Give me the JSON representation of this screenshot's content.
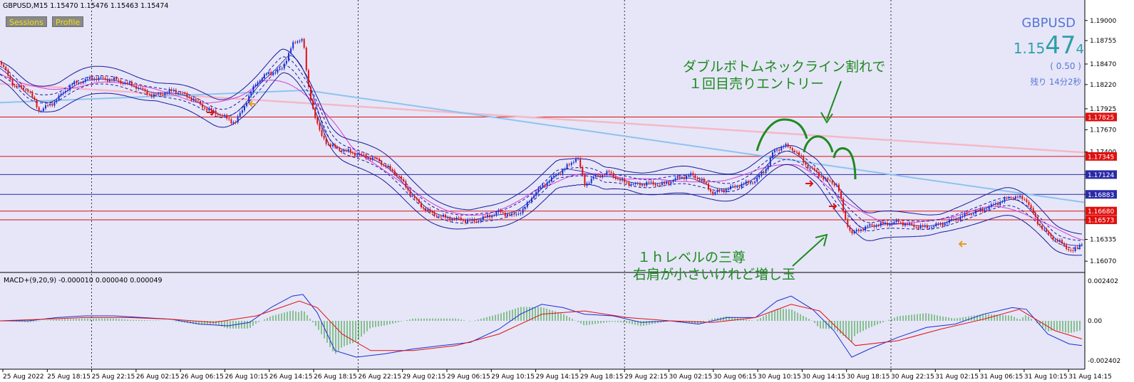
{
  "header": {
    "text": "GBPUSD,M15  1.15470 1.15476 1.15463 1.15474"
  },
  "buttons": [
    {
      "label": "Sessions"
    },
    {
      "label": "Profile"
    }
  ],
  "ticker": {
    "symbol": "GBPUSD",
    "bid_main": "1.15",
    "bid_big": "47",
    "bid_small": "4",
    "change": "( 0.50 )",
    "remaining": "残り 14分2秒"
  },
  "annotations": {
    "top_line1": "ダブルボトムネックライン割れで",
    "top_line2": "１回目売りエントリー",
    "bottom_line1": "１ｈレベルの三尊",
    "bottom_line2": "右肩が小さいけれど増し玉"
  },
  "macd": {
    "label": "MACD+(9,20,9) -0.000010 0.000040 0.000049"
  },
  "colors": {
    "background": "#e6e6f8",
    "bull": "#1a2fd0",
    "bear": "#e01010",
    "band": "#1a1a9c",
    "sma_blue": "#8ec3f0",
    "sma_pink": "#f5b8c8",
    "ma_magenta": "#d63cd6",
    "note": "#1f8a1f",
    "hline_red": "#e01010",
    "hline_blue": "#2a2aa8",
    "axis_tag_red": "#e01010",
    "axis_tag_blue": "#2a2aa8"
  },
  "chart_data": [
    {
      "type": "candlestick",
      "title": "GBPUSD,M15",
      "y_axis_ticks": [
        "1.19000",
        "1.18755",
        "1.18470",
        "1.18220",
        "1.17925",
        "1.17670",
        "1.17400",
        "1.17124",
        "1.16883",
        "1.16573",
        "1.16335",
        "1.16070"
      ],
      "ylim": [
        1.1595,
        1.1918
      ],
      "x_axis_ticks": [
        "25 Aug 2022",
        "25 Aug 18:15",
        "25 Aug 22:15",
        "26 Aug 02:15",
        "26 Aug 06:15",
        "26 Aug 10:15",
        "26 Aug 14:15",
        "26 Aug 18:15",
        "26 Aug 22:15",
        "29 Aug 02:15",
        "29 Aug 06:15",
        "29 Aug 10:15",
        "29 Aug 14:15",
        "29 Aug 18:15",
        "29 Aug 22:15",
        "30 Aug 02:15",
        "30 Aug 06:15",
        "30 Aug 10:15",
        "30 Aug 14:15",
        "30 Aug 18:15",
        "30 Aug 22:15",
        "31 Aug 02:15",
        "31 Aug 06:15",
        "31 Aug 10:15",
        "31 Aug 14:15"
      ],
      "price_close_path": [
        [
          0,
          1.185
        ],
        [
          20,
          1.182
        ],
        [
          40,
          1.1815
        ],
        [
          55,
          1.179
        ],
        [
          75,
          1.18
        ],
        [
          100,
          1.1822
        ],
        [
          130,
          1.183
        ],
        [
          160,
          1.1828
        ],
        [
          190,
          1.182
        ],
        [
          215,
          1.1808
        ],
        [
          245,
          1.1815
        ],
        [
          270,
          1.1805
        ],
        [
          290,
          1.1792
        ],
        [
          310,
          1.1785
        ],
        [
          330,
          1.1775
        ],
        [
          345,
          1.18
        ],
        [
          360,
          1.1825
        ],
        [
          375,
          1.1835
        ],
        [
          395,
          1.184
        ],
        [
          410,
          1.187
        ],
        [
          425,
          1.188
        ],
        [
          432,
          1.182
        ],
        [
          440,
          1.179
        ],
        [
          450,
          1.176
        ],
        [
          460,
          1.175
        ],
        [
          470,
          1.1745
        ],
        [
          490,
          1.174
        ],
        [
          510,
          1.1735
        ],
        [
          530,
          1.173
        ],
        [
          545,
          1.172
        ],
        [
          560,
          1.171
        ],
        [
          575,
          1.169
        ],
        [
          590,
          1.1675
        ],
        [
          605,
          1.1665
        ],
        [
          625,
          1.166
        ],
        [
          645,
          1.1658
        ],
        [
          665,
          1.1655
        ],
        [
          680,
          1.166
        ],
        [
          700,
          1.1667
        ],
        [
          720,
          1.1662
        ],
        [
          735,
          1.167
        ],
        [
          750,
          1.169
        ],
        [
          770,
          1.1705
        ],
        [
          785,
          1.1715
        ],
        [
          800,
          1.1725
        ],
        [
          810,
          1.1735
        ],
        [
          820,
          1.17
        ],
        [
          835,
          1.171
        ],
        [
          855,
          1.1715
        ],
        [
          870,
          1.1705
        ],
        [
          890,
          1.17
        ],
        [
          910,
          1.1702
        ],
        [
          930,
          1.17
        ],
        [
          950,
          1.1708
        ],
        [
          970,
          1.1712
        ],
        [
          985,
          1.1705
        ],
        [
          1000,
          1.169
        ],
        [
          1020,
          1.1695
        ],
        [
          1040,
          1.17
        ],
        [
          1060,
          1.1705
        ],
        [
          1075,
          1.172
        ],
        [
          1085,
          1.174
        ],
        [
          1100,
          1.1748
        ],
        [
          1115,
          1.1742
        ],
        [
          1130,
          1.1725
        ],
        [
          1145,
          1.1715
        ],
        [
          1160,
          1.1705
        ],
        [
          1175,
          1.17
        ],
        [
          1185,
          1.166
        ],
        [
          1195,
          1.164
        ],
        [
          1205,
          1.1645
        ],
        [
          1220,
          1.165
        ],
        [
          1240,
          1.1652
        ],
        [
          1260,
          1.1655
        ],
        [
          1280,
          1.165
        ],
        [
          1300,
          1.1648
        ],
        [
          1320,
          1.1652
        ],
        [
          1340,
          1.1658
        ],
        [
          1360,
          1.1665
        ],
        [
          1380,
          1.167
        ],
        [
          1400,
          1.1678
        ],
        [
          1420,
          1.1686
        ],
        [
          1440,
          1.1682
        ],
        [
          1455,
          1.1655
        ],
        [
          1470,
          1.164
        ],
        [
          1490,
          1.1628
        ],
        [
          1505,
          1.1618
        ],
        [
          1518,
          1.163
        ]
      ],
      "horizontal_lines": [
        {
          "value": 1.17825,
          "label": "1.17825",
          "color": "#e01010"
        },
        {
          "value": 1.17345,
          "label": "1.17345",
          "color": "#e01010"
        },
        {
          "value": 1.17124,
          "label": "1.17124",
          "color": "#2a2aa8"
        },
        {
          "value": 1.16883,
          "label": "1.16883",
          "color": "#2a2aa8"
        },
        {
          "value": 1.1668,
          "label": "1.16680",
          "color": "#e01010"
        },
        {
          "value": 1.16573,
          "label": "1.16573",
          "color": "#e01010"
        }
      ]
    },
    {
      "type": "line",
      "title": "MACD+(9,20,9)",
      "y_axis_ticks": [
        "0.002402",
        "0.00",
        "-0.002402"
      ],
      "ylim": [
        -0.0028,
        0.0028
      ],
      "series": [
        {
          "values": [
            [
              0,
              0.0
            ],
            [
              40,
              0.0
            ],
            [
              80,
              0.0002
            ],
            [
              120,
              0.0003
            ],
            [
              160,
              0.0003
            ],
            [
              200,
              0.0002
            ],
            [
              240,
              0.0001
            ],
            [
              280,
              -0.0002
            ],
            [
              320,
              -0.0003
            ],
            [
              350,
              -0.0001
            ],
            [
              380,
              0.0008
            ],
            [
              410,
              0.0015
            ],
            [
              425,
              0.0016
            ],
            [
              445,
              0.0005
            ],
            [
              470,
              -0.0018
            ],
            [
              500,
              -0.0022
            ],
            [
              540,
              -0.002
            ],
            [
              580,
              -0.0017
            ],
            [
              620,
              -0.0015
            ],
            [
              660,
              -0.0013
            ],
            [
              700,
              -0.0005
            ],
            [
              730,
              0.0004
            ],
            [
              760,
              0.001
            ],
            [
              790,
              0.0008
            ],
            [
              820,
              0.0004
            ],
            [
              860,
              0.0003
            ],
            [
              900,
              -0.0001
            ],
            [
              940,
              0.0
            ],
            [
              980,
              -0.0002
            ],
            [
              1020,
              0.0002
            ],
            [
              1060,
              0.0002
            ],
            [
              1090,
              0.0012
            ],
            [
              1110,
              0.0015
            ],
            [
              1140,
              0.0007
            ],
            [
              1170,
              -0.0006
            ],
            [
              1195,
              -0.0022
            ],
            [
              1220,
              -0.0017
            ],
            [
              1260,
              -0.001
            ],
            [
              1300,
              -0.0004
            ],
            [
              1340,
              -0.0002
            ],
            [
              1380,
              0.0004
            ],
            [
              1420,
              0.0008
            ],
            [
              1440,
              0.0007
            ],
            [
              1470,
              -0.0008
            ],
            [
              1500,
              -0.0014
            ],
            [
              1518,
              -0.0015
            ]
          ]
        },
        {
          "values": [
            [
              0,
              0.0
            ],
            [
              60,
              0.0001
            ],
            [
              120,
              0.0002
            ],
            [
              180,
              0.0002
            ],
            [
              240,
              0.0001
            ],
            [
              300,
              -0.0001
            ],
            [
              360,
              0.0003
            ],
            [
              420,
              0.0012
            ],
            [
              445,
              0.0008
            ],
            [
              480,
              -0.0008
            ],
            [
              520,
              -0.0018
            ],
            [
              580,
              -0.0018
            ],
            [
              640,
              -0.0015
            ],
            [
              700,
              -0.0008
            ],
            [
              760,
              0.0004
            ],
            [
              820,
              0.0006
            ],
            [
              880,
              0.0002
            ],
            [
              940,
              0.0
            ],
            [
              1000,
              -0.0001
            ],
            [
              1060,
              0.0002
            ],
            [
              1110,
              0.001
            ],
            [
              1150,
              0.0006
            ],
            [
              1200,
              -0.0015
            ],
            [
              1260,
              -0.0012
            ],
            [
              1320,
              -0.0005
            ],
            [
              1380,
              0.0001
            ],
            [
              1430,
              0.0007
            ],
            [
              1480,
              -0.0006
            ],
            [
              1518,
              -0.0011
            ]
          ]
        }
      ]
    }
  ]
}
